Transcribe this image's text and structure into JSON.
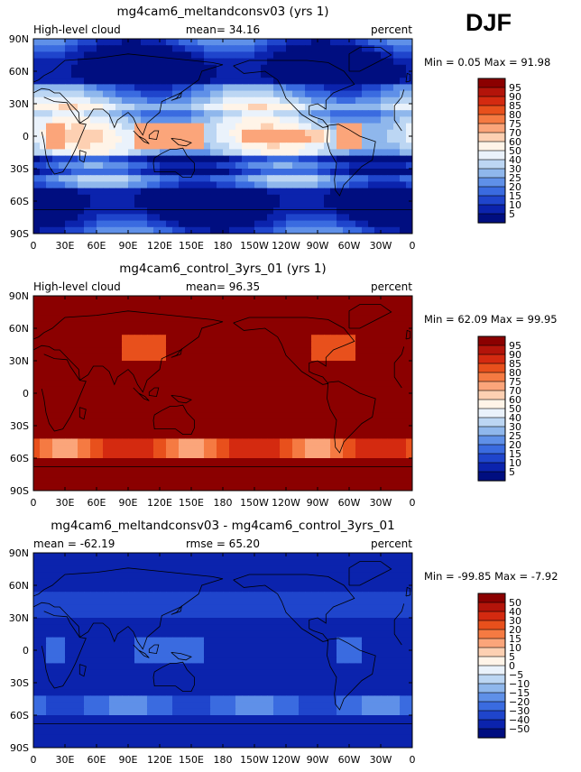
{
  "season": "DJF",
  "chart_data": [
    {
      "type": "heatmap",
      "title": "mg4cam6_meltandconsv03 (yrs 1)",
      "left_label": "High-level cloud",
      "center_label": "mean=  34.16",
      "right_label": "percent",
      "mean": 34.16,
      "min": 0.05,
      "max": 91.98,
      "minmax_label": "Min =    0.05  Max =   91.98",
      "xlim": [
        0,
        360
      ],
      "ylim": [
        -90,
        90
      ],
      "x_ticks": [
        "0",
        "30E",
        "60E",
        "90E",
        "120E",
        "150E",
        "180",
        "150W",
        "120W",
        "90W",
        "60W",
        "30W",
        "0"
      ],
      "y_ticks": [
        "90N",
        "60N",
        "30N",
        "0",
        "30S",
        "60S",
        "90S"
      ],
      "colorbar_levels": [
        "95",
        "90",
        "85",
        "80",
        "75",
        "70",
        "60",
        "50",
        "40",
        "30",
        "25",
        "20",
        "15",
        "10",
        "5"
      ],
      "colorbar_colors": [
        "#8b0000",
        "#b3140a",
        "#d42a10",
        "#e8501c",
        "#f57a42",
        "#fba57a",
        "#fdd0b2",
        "#fff4e8",
        "#eaf2fb",
        "#bcd6f3",
        "#8fb7ec",
        "#5f90e8",
        "#3a6be0",
        "#1f45cc",
        "#0b23ad",
        "#000e80"
      ]
    },
    {
      "type": "heatmap",
      "title": "mg4cam6_control_3yrs_01 (yrs 1)",
      "left_label": "High-level cloud",
      "center_label": "mean=  96.35",
      "right_label": "percent",
      "mean": 96.35,
      "min": 62.09,
      "max": 99.95,
      "minmax_label": "Min =  62.09  Max =   99.95",
      "xlim": [
        0,
        360
      ],
      "ylim": [
        -90,
        90
      ],
      "x_ticks": [
        "0",
        "30E",
        "60E",
        "90E",
        "120E",
        "150E",
        "180",
        "150W",
        "120W",
        "90W",
        "60W",
        "30W",
        "0"
      ],
      "y_ticks": [
        "90N",
        "60N",
        "30N",
        "0",
        "30S",
        "60S",
        "90S"
      ],
      "colorbar_levels": [
        "95",
        "90",
        "85",
        "80",
        "75",
        "70",
        "60",
        "50",
        "40",
        "30",
        "25",
        "20",
        "15",
        "10",
        "5"
      ],
      "colorbar_colors": [
        "#8b0000",
        "#b3140a",
        "#d42a10",
        "#e8501c",
        "#f57a42",
        "#fba57a",
        "#fdd0b2",
        "#fff4e8",
        "#eaf2fb",
        "#bcd6f3",
        "#8fb7ec",
        "#5f90e8",
        "#3a6be0",
        "#1f45cc",
        "#0b23ad",
        "#000e80"
      ]
    },
    {
      "type": "heatmap",
      "title": "mg4cam6_meltandconsv03 - mg4cam6_control_3yrs_01",
      "left_label": "mean = -62.19",
      "center_label": "rmse =  65.20",
      "right_label": "percent",
      "mean": -62.19,
      "rmse": 65.2,
      "min": -99.85,
      "max": -7.92,
      "minmax_label": "Min =  -99.85  Max =   -7.92",
      "xlim": [
        0,
        360
      ],
      "ylim": [
        -90,
        90
      ],
      "x_ticks": [
        "0",
        "30E",
        "60E",
        "90E",
        "120E",
        "150E",
        "180",
        "150W",
        "120W",
        "90W",
        "60W",
        "30W",
        "0"
      ],
      "y_ticks": [
        "90N",
        "60N",
        "30N",
        "0",
        "30S",
        "60S",
        "90S"
      ],
      "colorbar_levels": [
        "50",
        "40",
        "30",
        "20",
        "15",
        "10",
        "5",
        "0",
        "−5",
        "−10",
        "−15",
        "−20",
        "−30",
        "−40",
        "−50"
      ],
      "colorbar_colors": [
        "#8b0000",
        "#b3140a",
        "#d42a10",
        "#e8501c",
        "#f57a42",
        "#fba57a",
        "#fdd0b2",
        "#fff4e8",
        "#eaf2fb",
        "#bcd6f3",
        "#8fb7ec",
        "#5f90e8",
        "#3a6be0",
        "#1f45cc",
        "#0b23ad",
        "#000e80"
      ]
    }
  ]
}
